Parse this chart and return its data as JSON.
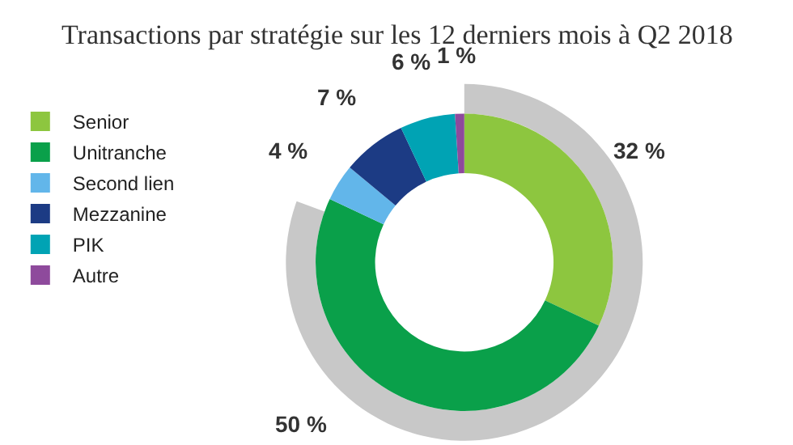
{
  "chart_data": {
    "type": "donut",
    "title": "Transactions par stratégie sur les 12 derniers mois à Q2 2018",
    "categories": [
      "Senior",
      "Unitranche",
      "Second lien",
      "Mezzanine",
      "PIK",
      "Autre"
    ],
    "values": [
      32,
      50,
      4,
      7,
      6,
      1
    ],
    "value_labels": [
      "32 %",
      "50 %",
      "4 %",
      "7 %",
      "6 %",
      "1 %"
    ],
    "colors": [
      "#8dc63f",
      "#0aa04a",
      "#62b6ea",
      "#1c3b84",
      "#00a3b4",
      "#8e4a9c"
    ],
    "legend": "left"
  }
}
